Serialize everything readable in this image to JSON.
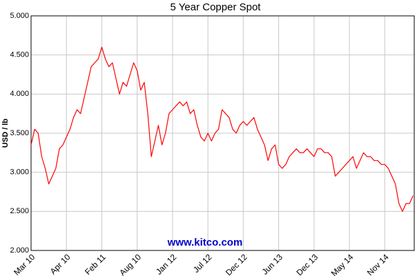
{
  "chart_data": {
    "type": "line",
    "title": "5 Year Copper Spot",
    "y_label": "USD / lb",
    "annotation": "www.kitco.com",
    "x": [
      0,
      0.6,
      1.2,
      1.8,
      2.4,
      3,
      3.6,
      4.2,
      4.8,
      5.4,
      6,
      6.6,
      7.2,
      7.8,
      8.4,
      9,
      9.6,
      10.2,
      10.8,
      11.4,
      12,
      12.6,
      13.2,
      13.8,
      14.4,
      15,
      15.6,
      16.2,
      16.8,
      17.4,
      18,
      18.6,
      19.2,
      19.8,
      20.4,
      21,
      21.6,
      22.2,
      22.8,
      23.4,
      24,
      24.6,
      25.2,
      25.8,
      26.4,
      27,
      27.6,
      28.2,
      28.8,
      29.4,
      30,
      30.6,
      31.2,
      31.8,
      32.4,
      33,
      33.6,
      34.2,
      34.8,
      35.4,
      36,
      36.6,
      37.2,
      37.8,
      38.4,
      39,
      39.6,
      40.2,
      40.8,
      41.4,
      42,
      42.6,
      43.2,
      43.8,
      44.4,
      45,
      45.6,
      46.2,
      46.8,
      47.4,
      48,
      48.6,
      49.2,
      49.8,
      50.4,
      51,
      51.6,
      52.2,
      52.8,
      53.4,
      54,
      54.6,
      55.2,
      55.8,
      56.4,
      57,
      57.6,
      58.2,
      58.8,
      59.4,
      60,
      60.6,
      61.2,
      61.8,
      62.4,
      63,
      63.6,
      64.2,
      64.8
    ],
    "series": [
      {
        "color": "#ff0000",
        "values": [
          3.35,
          3.55,
          3.5,
          3.2,
          3.05,
          2.85,
          2.95,
          3.05,
          3.3,
          3.35,
          3.45,
          3.55,
          3.7,
          3.8,
          3.75,
          3.95,
          4.15,
          4.35,
          4.4,
          4.45,
          4.6,
          4.45,
          4.35,
          4.4,
          4.2,
          4.0,
          4.15,
          4.1,
          4.25,
          4.4,
          4.3,
          4.05,
          4.15,
          3.75,
          3.2,
          3.4,
          3.6,
          3.35,
          3.5,
          3.75,
          3.8,
          3.85,
          3.9,
          3.85,
          3.9,
          3.75,
          3.8,
          3.6,
          3.45,
          3.4,
          3.5,
          3.4,
          3.5,
          3.55,
          3.8,
          3.75,
          3.7,
          3.55,
          3.5,
          3.6,
          3.65,
          3.6,
          3.65,
          3.7,
          3.55,
          3.45,
          3.35,
          3.15,
          3.3,
          3.35,
          3.1,
          3.05,
          3.1,
          3.2,
          3.25,
          3.3,
          3.25,
          3.25,
          3.3,
          3.25,
          3.2,
          3.3,
          3.3,
          3.25,
          3.25,
          3.2,
          2.95,
          3.0,
          3.05,
          3.1,
          3.15,
          3.2,
          3.05,
          3.15,
          3.25,
          3.2,
          3.2,
          3.15,
          3.15,
          3.1,
          3.1,
          3.05,
          2.95,
          2.85,
          2.6,
          2.5,
          2.6,
          2.6,
          2.7
        ]
      }
    ],
    "xlim": [
      0,
      65
    ],
    "xticks": [
      {
        "value": 0,
        "label": "Mar 10"
      },
      {
        "value": 6,
        "label": "Apr 10"
      },
      {
        "value": 12,
        "label": "Feb 11"
      },
      {
        "value": 18,
        "label": "Aug 10"
      },
      {
        "value": 24,
        "label": "Jan 12"
      },
      {
        "value": 30,
        "label": "Jul 12"
      },
      {
        "value": 36,
        "label": "Dec 12"
      },
      {
        "value": 42,
        "label": "Jun 13"
      },
      {
        "value": 48,
        "label": "Dec 13"
      },
      {
        "value": 54,
        "label": "May 14"
      },
      {
        "value": 60,
        "label": "Nov 14"
      }
    ],
    "ylim": [
      2,
      5
    ],
    "yticks": [
      {
        "value": 2,
        "label": "2.000"
      },
      {
        "value": 2.5,
        "label": "2.500"
      },
      {
        "value": 3,
        "label": "3.000"
      },
      {
        "value": 3.5,
        "label": "3.500"
      },
      {
        "value": 4,
        "label": "4.000"
      },
      {
        "value": 4.5,
        "label": "4.500"
      },
      {
        "value": 5,
        "label": "5.000"
      }
    ],
    "grid": true
  }
}
